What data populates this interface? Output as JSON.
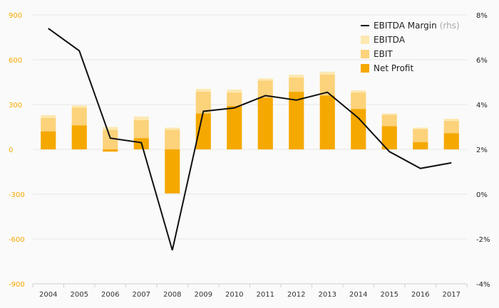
{
  "chart_data": {
    "type": "bar",
    "title": "",
    "xlabel": "",
    "ylabel": "",
    "categories": [
      "2004",
      "2005",
      "2006",
      "2007",
      "2008",
      "2009",
      "2010",
      "2011",
      "2012",
      "2013",
      "2014",
      "2015",
      "2016",
      "2017"
    ],
    "y_left": {
      "min": -900,
      "max": 900,
      "ticks": [
        -900,
        -600,
        -300,
        0,
        300,
        600,
        900
      ]
    },
    "y_right": {
      "min": -4,
      "max": 8,
      "ticks": [
        -4,
        -2,
        0,
        2,
        4,
        6,
        8
      ],
      "tick_labels": [
        "-4%",
        "-2%",
        "0%",
        "2%",
        "4%",
        "6%",
        "8%"
      ]
    },
    "series": [
      {
        "name": "EBITDA",
        "kind": "bar",
        "axis": "left",
        "color": "#fde8b0",
        "values": [
          230,
          295,
          150,
          220,
          145,
          405,
          400,
          475,
          500,
          520,
          395,
          240,
          145,
          205
        ]
      },
      {
        "name": "EBIT",
        "kind": "bar",
        "axis": "left",
        "color": "#fcd27a",
        "values": [
          210,
          278,
          130,
          195,
          130,
          385,
          380,
          460,
          480,
          500,
          380,
          230,
          135,
          190
        ]
      },
      {
        "name": "Net Profit",
        "kind": "bar",
        "axis": "left",
        "color": "#f5a800",
        "values": [
          120,
          160,
          -15,
          75,
          -295,
          240,
          290,
          345,
          385,
          360,
          270,
          155,
          48,
          108
        ]
      },
      {
        "name": "EBITDA Margin",
        "name_suffix": "(rhs)",
        "kind": "line",
        "axis": "right",
        "color": "#111111",
        "values": [
          7.4,
          6.4,
          2.5,
          2.3,
          -2.5,
          3.7,
          3.85,
          4.4,
          4.2,
          4.55,
          3.4,
          1.9,
          1.15,
          1.4
        ]
      }
    ],
    "legend": {
      "position": "top-right"
    },
    "grid": true
  }
}
